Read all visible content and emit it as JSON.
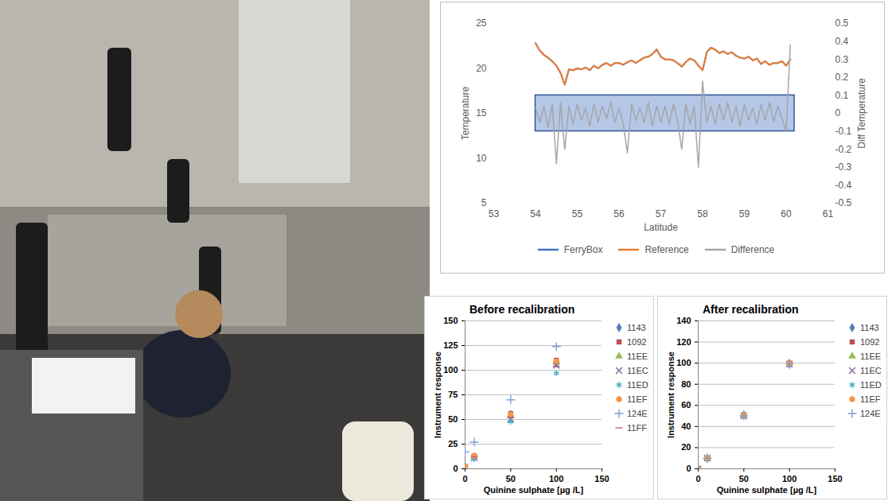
{
  "chart_data": [
    {
      "type": "line",
      "xlabel": "Latitude",
      "ylabel": "Temperature",
      "y2label": "Diff Temperature",
      "xlim": [
        53,
        61
      ],
      "xticks": [
        53,
        54,
        55,
        56,
        57,
        58,
        59,
        60,
        61
      ],
      "ylim": [
        5,
        25
      ],
      "yticks": [
        5,
        10,
        15,
        20,
        25
      ],
      "y2lim": [
        -0.5,
        0.5
      ],
      "y2ticks": [
        -0.5,
        -0.4,
        -0.3,
        -0.2,
        -0.1,
        0,
        0.1,
        0.2,
        0.3,
        0.4,
        0.5
      ],
      "legend": "bottom",
      "band": {
        "xlim": [
          54,
          60.2
        ],
        "y2lim": [
          -0.1,
          0.1
        ],
        "color": "#4472c4"
      },
      "x": [
        54.0,
        54.1,
        54.2,
        54.3,
        54.4,
        54.5,
        54.6,
        54.7,
        54.8,
        54.9,
        55.0,
        55.1,
        55.2,
        55.3,
        55.4,
        55.5,
        55.6,
        55.7,
        55.8,
        55.9,
        56.0,
        56.1,
        56.2,
        56.3,
        56.4,
        56.5,
        56.6,
        56.7,
        56.8,
        56.9,
        57.0,
        57.1,
        57.2,
        57.3,
        57.4,
        57.5,
        57.6,
        57.7,
        57.8,
        57.9,
        58.0,
        58.1,
        58.2,
        58.3,
        58.4,
        58.5,
        58.6,
        58.7,
        58.8,
        58.9,
        59.0,
        59.1,
        59.2,
        59.3,
        59.4,
        59.5,
        59.6,
        59.7,
        59.8,
        59.9,
        60.0,
        60.1
      ],
      "series": [
        {
          "name": "FerryBox",
          "color": "#4472c4",
          "values": [
            22.8,
            22.0,
            21.5,
            21.2,
            20.8,
            20.3,
            19.5,
            18.2,
            19.9,
            19.8,
            20.0,
            19.9,
            20.1,
            19.8,
            20.3,
            20.0,
            20.4,
            20.6,
            20.3,
            20.6,
            20.6,
            20.4,
            20.7,
            20.9,
            20.6,
            20.9,
            21.2,
            21.3,
            21.6,
            22.1,
            21.3,
            21.0,
            21.0,
            20.9,
            20.6,
            20.2,
            20.7,
            21.1,
            20.9,
            20.3,
            19.8,
            21.8,
            22.3,
            22.1,
            21.7,
            21.9,
            21.6,
            21.8,
            21.4,
            21.2,
            21.1,
            21.3,
            20.9,
            21.1,
            20.5,
            20.8,
            20.4,
            20.6,
            20.6,
            20.8,
            20.3,
            21.0
          ]
        },
        {
          "name": "Reference",
          "color": "#ed7d31",
          "values": [
            22.8,
            22.0,
            21.5,
            21.2,
            20.8,
            20.3,
            19.5,
            18.2,
            19.9,
            19.8,
            20.0,
            19.9,
            20.1,
            19.8,
            20.3,
            20.0,
            20.4,
            20.6,
            20.3,
            20.6,
            20.6,
            20.4,
            20.7,
            20.9,
            20.6,
            20.9,
            21.2,
            21.3,
            21.6,
            22.1,
            21.3,
            21.0,
            21.0,
            20.9,
            20.6,
            20.2,
            20.7,
            21.1,
            20.9,
            20.3,
            19.8,
            21.8,
            22.3,
            22.1,
            21.7,
            21.9,
            21.6,
            21.8,
            21.4,
            21.2,
            21.1,
            21.3,
            20.9,
            21.1,
            20.5,
            20.8,
            20.4,
            20.6,
            20.6,
            20.8,
            20.3,
            21.0
          ]
        },
        {
          "name": "Difference",
          "color": "#a5a5a5",
          "axis": "y2",
          "values": [
            0.03,
            -0.05,
            0.04,
            -0.08,
            0.05,
            -0.28,
            0.06,
            -0.2,
            0.04,
            -0.06,
            0.05,
            -0.04,
            0.03,
            -0.07,
            0.05,
            -0.05,
            0.04,
            -0.03,
            0.06,
            -0.05,
            0.03,
            -0.06,
            -0.22,
            0.05,
            -0.04,
            0.03,
            -0.05,
            0.06,
            -0.07,
            0.04,
            -0.05,
            0.04,
            -0.06,
            0.05,
            -0.04,
            -0.2,
            0.05,
            -0.06,
            0.04,
            -0.3,
            0.18,
            -0.05,
            0.04,
            -0.06,
            0.05,
            -0.04,
            0.06,
            -0.05,
            0.04,
            -0.07,
            0.05,
            -0.04,
            0.03,
            -0.06,
            0.05,
            -0.04,
            0.06,
            -0.05,
            0.04,
            -0.03,
            -0.1,
            0.38
          ]
        }
      ]
    },
    {
      "type": "scatter",
      "title": "Before recalibration",
      "xlabel": "Quinine sulphate [µg /L]",
      "ylabel": "Instrument response",
      "xlim": [
        0,
        150
      ],
      "xticks": [
        0,
        50,
        100,
        150
      ],
      "ylim": [
        0,
        150
      ],
      "yticks": [
        0,
        25,
        50,
        75,
        100,
        125,
        150
      ],
      "grid": true,
      "legend": "right",
      "x": [
        0,
        10,
        50,
        100
      ],
      "series": [
        {
          "name": "1143",
          "color": "#4f81bd",
          "marker": "diamond",
          "values": [
            2,
            12,
            55,
            107
          ]
        },
        {
          "name": "1092",
          "color": "#c0504d",
          "marker": "square",
          "values": [
            2,
            13,
            56,
            110
          ]
        },
        {
          "name": "11EE",
          "color": "#9bbb59",
          "marker": "triangle",
          "values": [
            1,
            12,
            54,
            108
          ]
        },
        {
          "name": "11EC",
          "color": "#8064a2",
          "marker": "times",
          "values": [
            1,
            11,
            50,
            105
          ]
        },
        {
          "name": "11ED",
          "color": "#4bacc6",
          "marker": "asterisk",
          "values": [
            0,
            10,
            48,
            97
          ]
        },
        {
          "name": "11EF",
          "color": "#f79646",
          "marker": "circle",
          "values": [
            2,
            13,
            55,
            109
          ]
        },
        {
          "name": "124E",
          "color": "#7f9fd6",
          "marker": "plus",
          "values": [
            17,
            27,
            70,
            124
          ]
        },
        {
          "name": "11FF",
          "color": "#c0607f",
          "marker": "dash",
          "values": [
            0,
            12,
            52,
            104
          ]
        }
      ]
    },
    {
      "type": "scatter",
      "title": "After recalibration",
      "xlabel": "Quinine sulphate [µg /L]",
      "ylabel": "Instrument response",
      "xlim": [
        0,
        150
      ],
      "xticks": [
        0,
        50,
        100,
        150
      ],
      "ylim": [
        0,
        140
      ],
      "yticks": [
        0,
        20,
        40,
        60,
        80,
        100,
        120,
        140
      ],
      "grid": true,
      "legend": "right",
      "x": [
        0,
        10,
        50,
        100
      ],
      "series": [
        {
          "name": "1143",
          "color": "#4f81bd",
          "marker": "diamond",
          "values": [
            0,
            10,
            51,
            99
          ]
        },
        {
          "name": "1092",
          "color": "#c0504d",
          "marker": "square",
          "values": [
            0,
            10,
            51,
            100
          ]
        },
        {
          "name": "11EE",
          "color": "#9bbb59",
          "marker": "triangle",
          "values": [
            0,
            10,
            50,
            100
          ]
        },
        {
          "name": "11EC",
          "color": "#8064a2",
          "marker": "times",
          "values": [
            0,
            10,
            50,
            99
          ]
        },
        {
          "name": "11ED",
          "color": "#4bacc6",
          "marker": "asterisk",
          "values": [
            0,
            10,
            50,
            99
          ]
        },
        {
          "name": "11EF",
          "color": "#f79646",
          "marker": "circle",
          "values": [
            0,
            10,
            51,
            100
          ]
        },
        {
          "name": "124E",
          "color": "#7f9fd6",
          "marker": "plus",
          "values": [
            0,
            10,
            50,
            100
          ]
        }
      ]
    }
  ]
}
